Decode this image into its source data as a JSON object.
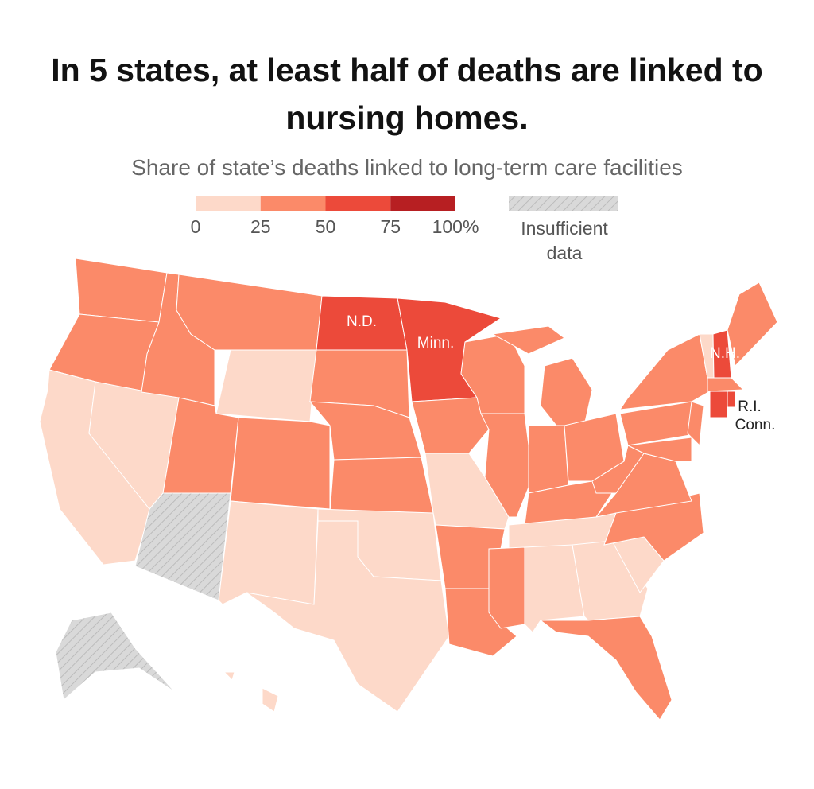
{
  "title": "In 5 states, at least half of deaths are linked to nursing homes.",
  "subtitle": "Share of state’s deaths linked to long-term care facilities",
  "legend": {
    "ticks": [
      0,
      25,
      50,
      75,
      {
        "value": 100,
        "label": "100%"
      }
    ],
    "colors": [
      "#fdd9c9",
      "#fb8a69",
      "#ec4a3a",
      "#b71f22"
    ],
    "no_data_label": "Insufficient data",
    "no_data_color": "#d9d9d9"
  },
  "labels": [
    "N.D.",
    "Minn.",
    "N.H.",
    "R.I.",
    "Conn."
  ]
}
